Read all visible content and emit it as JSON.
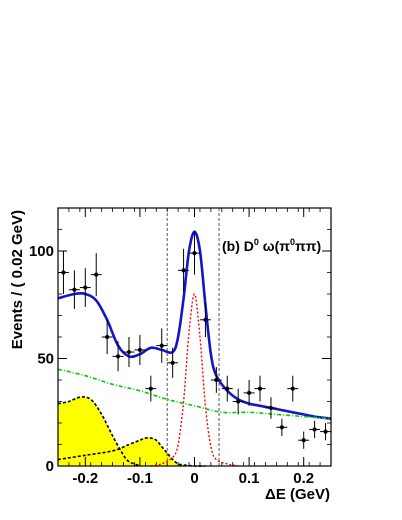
{
  "chart_data": {
    "type": "scatter",
    "title": "",
    "xlabel": "ΔE (GeV)",
    "ylabel": "Events / ( 0.02  GeV)",
    "xlim": [
      -0.25,
      0.25
    ],
    "ylim": [
      0,
      120
    ],
    "x_ticks": [
      -0.2,
      -0.1,
      0,
      0.1,
      0.2
    ],
    "x_tick_labels": [
      "-0.2",
      "-0.1",
      "0",
      "0.1",
      "0.2"
    ],
    "y_ticks": [
      0,
      50,
      100
    ],
    "y_tick_labels": [
      "0",
      "50",
      "100"
    ],
    "annotation": {
      "prefix": "(b) D",
      "sup1": "0",
      "middle": " ω(π",
      "sup2": "0",
      "suffix": "ππ)"
    },
    "grid": false,
    "signal_window": [
      -0.05,
      0.045
    ],
    "colors": {
      "data": "#000000",
      "total_fit": "#1414c8",
      "signal": "#ff0000",
      "combinatorial": "#00cc00",
      "peaking_fill": "#ffff00",
      "peaking_line": "#000000",
      "window_line": "#555555"
    },
    "series": [
      {
        "kind": "points",
        "x": [
          -0.24,
          -0.22,
          -0.2,
          -0.18,
          -0.16,
          -0.14,
          -0.12,
          -0.1,
          -0.08,
          -0.06,
          -0.04,
          -0.02,
          0.0,
          0.02,
          0.04,
          0.06,
          0.08,
          0.1,
          0.12,
          0.14,
          0.16,
          0.18,
          0.2,
          0.22,
          0.24
        ],
        "y": [
          90,
          82,
          83,
          89,
          60,
          51,
          53,
          54,
          36,
          56,
          48,
          91,
          99,
          68,
          40,
          36,
          30,
          34,
          36,
          27,
          18,
          36,
          12,
          17,
          16
        ],
        "yerr": [
          10,
          9,
          9,
          10,
          8,
          7,
          7,
          7,
          6,
          8,
          7,
          10,
          10,
          8,
          6,
          6,
          6,
          6,
          6,
          5,
          4,
          6,
          4,
          4,
          4
        ],
        "xerr": 0.01
      },
      {
        "kind": "curve",
        "role": "total_fit",
        "x": [
          -0.25,
          -0.22,
          -0.2,
          -0.18,
          -0.16,
          -0.14,
          -0.12,
          -0.1,
          -0.08,
          -0.06,
          -0.04,
          -0.03,
          -0.02,
          -0.01,
          0.0,
          0.01,
          0.02,
          0.03,
          0.04,
          0.06,
          0.08,
          0.1,
          0.12,
          0.14,
          0.16,
          0.18,
          0.2,
          0.22,
          0.25
        ],
        "y": [
          78,
          80,
          80,
          77,
          68,
          56,
          51,
          52,
          55,
          54,
          53,
          60,
          78,
          100,
          109,
          100,
          75,
          52,
          42,
          35,
          31,
          29,
          28,
          27,
          26,
          25,
          24,
          23,
          22
        ]
      },
      {
        "kind": "curve",
        "role": "signal",
        "x": [
          -0.08,
          -0.06,
          -0.04,
          -0.03,
          -0.02,
          -0.01,
          0.0,
          0.01,
          0.02,
          0.03,
          0.04,
          0.06,
          0.08
        ],
        "y": [
          0,
          1,
          4,
          10,
          30,
          62,
          80,
          60,
          28,
          9,
          3,
          1,
          0
        ]
      },
      {
        "kind": "curve",
        "role": "combinatorial",
        "x": [
          -0.25,
          -0.2,
          -0.15,
          -0.1,
          -0.05,
          0.0,
          0.05,
          0.1,
          0.15,
          0.2,
          0.25
        ],
        "y": [
          45,
          42,
          38,
          35,
          31,
          28,
          25,
          25,
          24,
          23,
          22
        ]
      },
      {
        "kind": "filled_curve",
        "role": "peaking_background_1",
        "x": [
          -0.25,
          -0.23,
          -0.21,
          -0.19,
          -0.17,
          -0.15,
          -0.13,
          -0.12,
          -0.11,
          -0.1
        ],
        "y": [
          29,
          30,
          32,
          31,
          24,
          14,
          5,
          2,
          1,
          0
        ]
      },
      {
        "kind": "filled_curve",
        "role": "peaking_background_2",
        "x": [
          -0.25,
          -0.2,
          -0.15,
          -0.12,
          -0.1,
          -0.09,
          -0.08,
          -0.07,
          -0.06,
          -0.05,
          -0.04,
          -0.03,
          -0.02,
          0.0,
          0.02
        ],
        "y": [
          3,
          5,
          7,
          10,
          12,
          13,
          13,
          12,
          9,
          6,
          3,
          1,
          0.5,
          0,
          0
        ]
      }
    ]
  }
}
